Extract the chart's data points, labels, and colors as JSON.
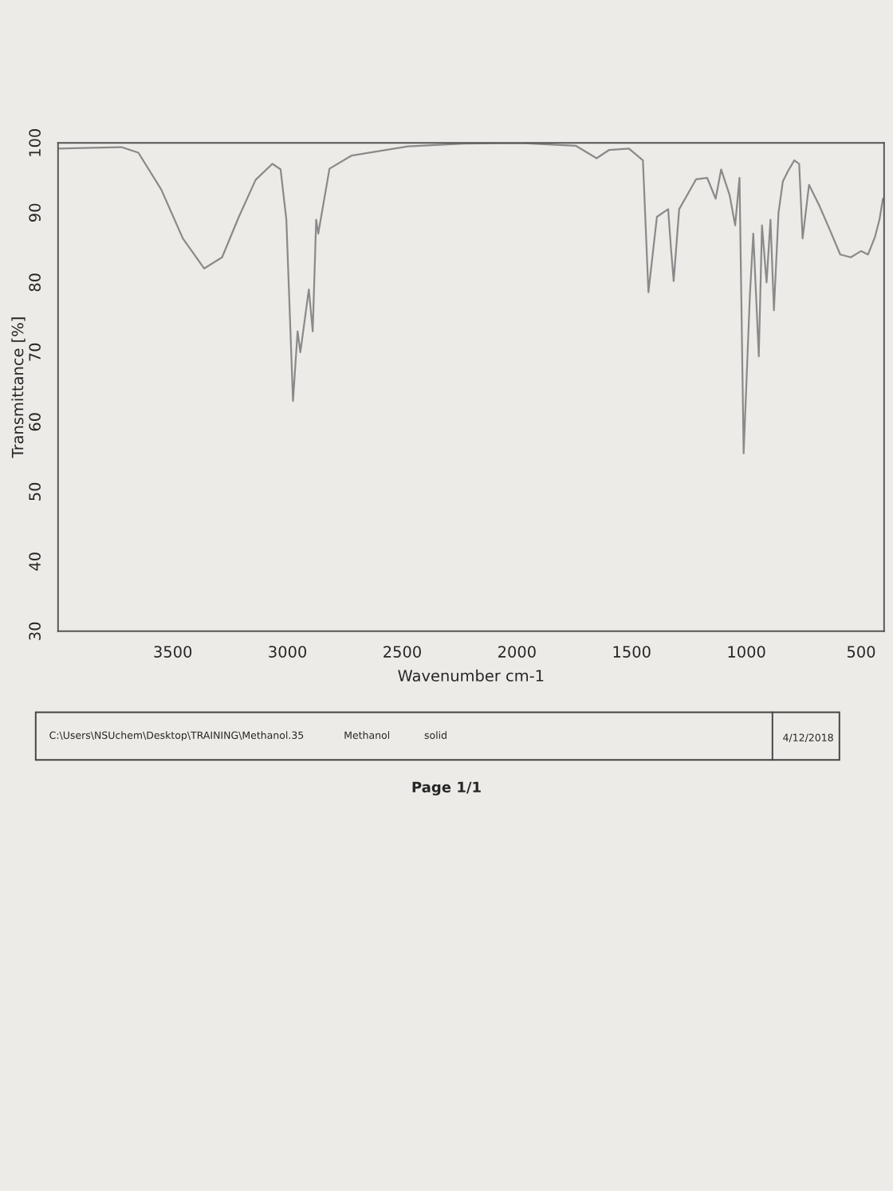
{
  "chart_data": {
    "type": "line",
    "xlabel": "Wavenumber cm-1",
    "ylabel": "Transmittance [%]",
    "xlim": [
      4000,
      400
    ],
    "ylim": [
      30,
      100
    ],
    "xticks": [
      3500,
      3000,
      2500,
      2000,
      1500,
      1000,
      500
    ],
    "yticks": [
      30,
      40,
      50,
      60,
      70,
      80,
      90,
      100
    ],
    "grid": false,
    "legend": false,
    "marker": "none",
    "line_style": "solid",
    "series": [
      {
        "color": "#8a8a8a",
        "x": [
          4000,
          3850,
          3724,
          3650,
          3550,
          3456,
          3363,
          3285,
          3212,
          3139,
          3066,
          3030,
          3005,
          2976,
          2956,
          2944,
          2907,
          2890,
          2875,
          2866,
          2817,
          2720,
          2476,
          2232,
          1988,
          1744,
          1653,
          1598,
          1512,
          1451,
          1427,
          1390,
          1341,
          1329,
          1317,
          1293,
          1219,
          1171,
          1134,
          1110,
          1073,
          1049,
          1030,
          1012,
          985,
          970,
          946,
          932,
          912,
          895,
          880,
          860,
          841,
          818,
          791,
          770,
          755,
          727,
          682,
          636,
          591,
          545,
          500,
          470,
          440,
          420,
          405
        ],
        "values": [
          99.2,
          99.3,
          99.4,
          98.6,
          93.3,
          86.3,
          82,
          83.6,
          89.4,
          94.7,
          97,
          96.2,
          89,
          63,
          73,
          70,
          79,
          73,
          89,
          87,
          96.3,
          98.2,
          99.5,
          99.9,
          100,
          99.6,
          97.8,
          99,
          99.2,
          97.5,
          78.6,
          89.4,
          90.5,
          85,
          80.2,
          90.5,
          94.8,
          95,
          92,
          96.2,
          92.5,
          88.2,
          95,
          55.5,
          78,
          87,
          69.4,
          88.2,
          80,
          89,
          76,
          90,
          94.5,
          96,
          97.5,
          97,
          86.3,
          94,
          91,
          87.5,
          84,
          83.6,
          84.5,
          84,
          86.5,
          89,
          92
        ]
      }
    ],
    "annotations": [
      "C:\\Users\\NSUchem\\Desktop\\TRAINING\\Methanol.35",
      "Methanol",
      "solid",
      "4/12/2018",
      "Page 1/1"
    ]
  }
}
